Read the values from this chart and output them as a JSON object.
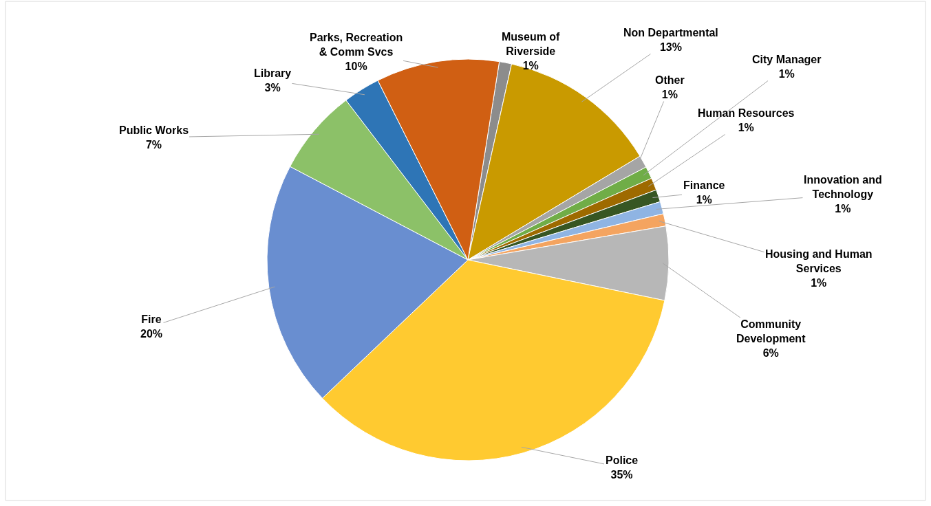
{
  "chart_data": {
    "type": "pie",
    "categories": [
      "Museum of Riverside",
      "Non Departmental",
      "Other",
      "City Manager",
      "Human Resources",
      "Finance",
      "Innovation and Technology",
      "Housing and Human Services",
      "Community Development",
      "Police",
      "Fire",
      "Public Works",
      "Library",
      "Parks, Recreation & Comm Svcs"
    ],
    "values": [
      1,
      13,
      1,
      1,
      1,
      1,
      1,
      1,
      6,
      35,
      20,
      7,
      3,
      10
    ],
    "value_labels": [
      "1%",
      "13%",
      "1%",
      "1%",
      "1%",
      "1%",
      "1%",
      "1%",
      "6%",
      "35%",
      "20%",
      "7%",
      "3%",
      "10%"
    ],
    "colors": [
      "#8c8c8c",
      "#c99a00",
      "#a5a5a5",
      "#70ad47",
      "#9e6a00",
      "#375623",
      "#8fb4e3",
      "#f4a460",
      "#b7b7b7",
      "#ffca30",
      "#698ed0",
      "#8cc168",
      "#2e75b6",
      "#d05f13"
    ],
    "legend": false
  }
}
